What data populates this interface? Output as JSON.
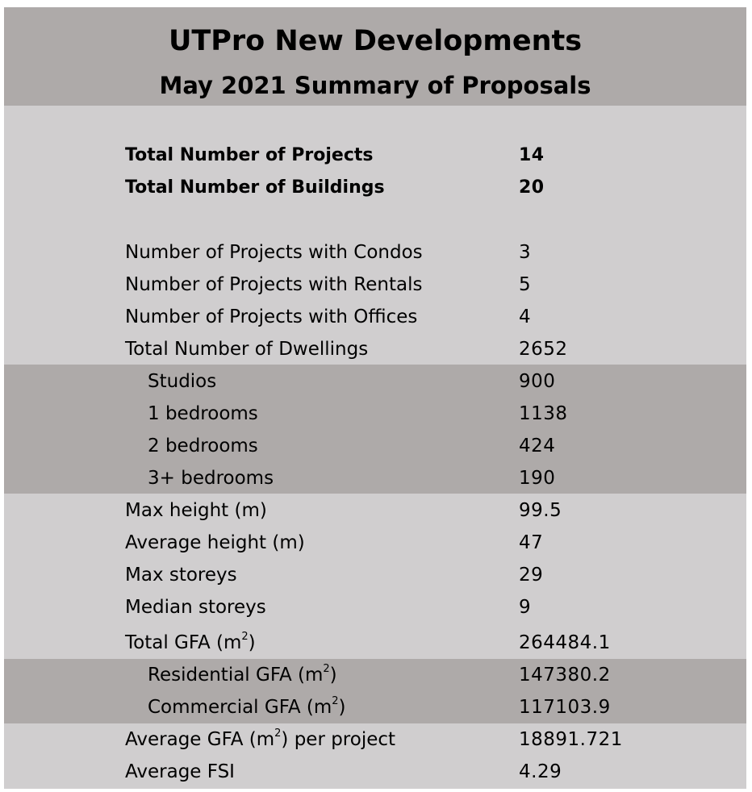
{
  "title": "UTPro New Developments",
  "subtitle": "May 2021 Summary of Proposals",
  "colors": {
    "light_bg": "#d0cecf",
    "dark_band": "#aeaaa9"
  },
  "rows": [
    {
      "label": "Total Number of Projects",
      "value": "14"
    },
    {
      "label": "Total Number of Buildings",
      "value": "20"
    },
    {
      "label": "Number of Projects with Condos",
      "value": "3"
    },
    {
      "label": "Number of Projects with Rentals",
      "value": "5"
    },
    {
      "label": "Number of Projects with Offices",
      "value": "4"
    },
    {
      "label": "Total Number of Dwellings",
      "value": "2652"
    },
    {
      "label": "Studios",
      "value": "900"
    },
    {
      "label": "1 bedrooms",
      "value": "1138"
    },
    {
      "label": "2 bedrooms",
      "value": "424"
    },
    {
      "label": "3+ bedrooms",
      "value": "190"
    },
    {
      "label": "Max height (m)",
      "value": "99.5"
    },
    {
      "label": "Average height (m)",
      "value": "47"
    },
    {
      "label": "Max storeys",
      "value": "29"
    },
    {
      "label": "Median storeys",
      "value": "9"
    },
    {
      "label_pre": "Total GFA (m",
      "label_sup": "2",
      "label_post": ")",
      "value": "264484.1"
    },
    {
      "label_pre": "Residential GFA (m",
      "label_sup": "2",
      "label_post": ")",
      "value": "147380.2"
    },
    {
      "label_pre": "Commercial GFA (m",
      "label_sup": "2",
      "label_post": ")",
      "value": "117103.9"
    },
    {
      "label_pre": "Average GFA (m",
      "label_sup": "2",
      "label_post": ") per project",
      "value": "18891.721"
    },
    {
      "label": "Average FSI",
      "value": "4.29"
    }
  ]
}
